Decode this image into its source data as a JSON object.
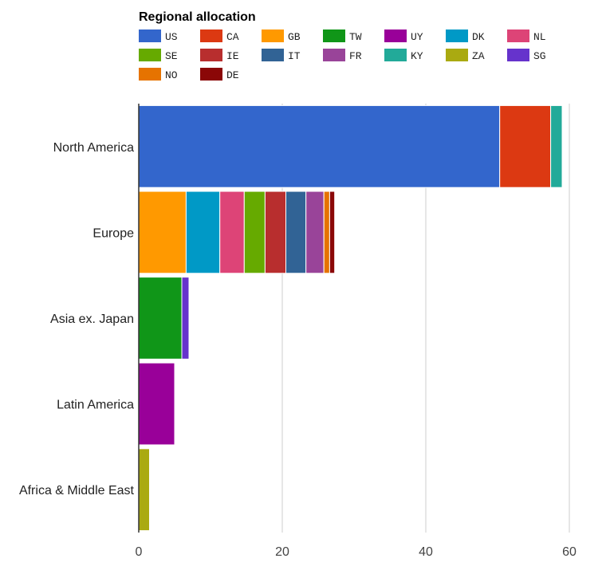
{
  "chart_data": {
    "type": "bar",
    "orientation": "horizontal",
    "stacked": true,
    "title": "Regional allocation",
    "xlabel": "",
    "ylabel": "",
    "xlim": [
      0,
      60
    ],
    "x_ticks": [
      0,
      20,
      40,
      60
    ],
    "grid": true,
    "legend_position": "top",
    "categories": [
      "North America",
      "Europe",
      "Asia ex. Japan",
      "Latin America",
      "Africa & Middle East"
    ],
    "series": [
      {
        "name": "US",
        "color": "#3366cc",
        "values": [
          50.3,
          0,
          0,
          0,
          0
        ]
      },
      {
        "name": "CA",
        "color": "#dc3912",
        "values": [
          7.1,
          0,
          0,
          0,
          0
        ]
      },
      {
        "name": "GB",
        "color": "#ff9900",
        "values": [
          0,
          6.6,
          0,
          0,
          0
        ]
      },
      {
        "name": "TW",
        "color": "#109618",
        "values": [
          0,
          0,
          6.0,
          0,
          0
        ]
      },
      {
        "name": "UY",
        "color": "#990099",
        "values": [
          0,
          0,
          0,
          5.0,
          0
        ]
      },
      {
        "name": "DK",
        "color": "#0099c6",
        "values": [
          0,
          4.7,
          0,
          0,
          0
        ]
      },
      {
        "name": "NL",
        "color": "#dd4477",
        "values": [
          0,
          3.4,
          0,
          0,
          0
        ]
      },
      {
        "name": "SE",
        "color": "#66aa00",
        "values": [
          0,
          2.9,
          0,
          0,
          0
        ]
      },
      {
        "name": "IE",
        "color": "#b82e2e",
        "values": [
          0,
          2.9,
          0,
          0,
          0
        ]
      },
      {
        "name": "IT",
        "color": "#316395",
        "values": [
          0,
          2.8,
          0,
          0,
          0
        ]
      },
      {
        "name": "FR",
        "color": "#994499",
        "values": [
          0,
          2.5,
          0,
          0,
          0
        ]
      },
      {
        "name": "KY",
        "color": "#22aa99",
        "values": [
          1.6,
          0,
          0,
          0,
          0
        ]
      },
      {
        "name": "ZA",
        "color": "#aaaa11",
        "values": [
          0,
          0,
          0,
          0,
          1.5
        ]
      },
      {
        "name": "SG",
        "color": "#6633cc",
        "values": [
          0,
          0,
          1.0,
          0,
          0
        ]
      },
      {
        "name": "NO",
        "color": "#e67300",
        "values": [
          0,
          0.8,
          0,
          0,
          0
        ]
      },
      {
        "name": "DE",
        "color": "#8b0707",
        "values": [
          0,
          0.7,
          0,
          0,
          0
        ]
      }
    ]
  }
}
